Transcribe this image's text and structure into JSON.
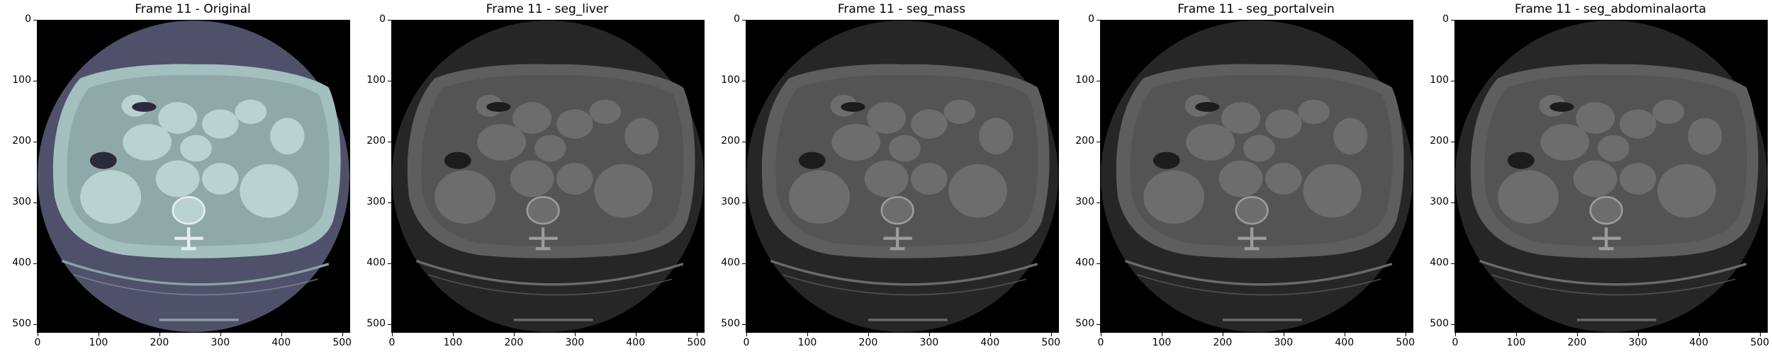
{
  "figure": {
    "panels": [
      {
        "title": "Frame 11 - Original",
        "colormap": "bone"
      },
      {
        "title": "Frame 11 - seg_liver",
        "colormap": "gray"
      },
      {
        "title": "Frame 11 - seg_mass",
        "colormap": "gray"
      },
      {
        "title": "Frame 11 - seg_portalvein",
        "colormap": "gray"
      },
      {
        "title": "Frame 11 - seg_abdominalaorta",
        "colormap": "gray"
      }
    ],
    "x_ticks": [
      "0",
      "100",
      "200",
      "300",
      "400",
      "500"
    ],
    "y_ticks": [
      "0",
      "100",
      "200",
      "300",
      "400",
      "500"
    ],
    "image_extent": [
      0,
      512
    ],
    "palettes": {
      "bone": {
        "bg": "#000000",
        "fov": "#4f5069",
        "body": "#a3bfbe",
        "fat": "#8fa9a8",
        "organ": "#b9d3d1",
        "dark": "#2a2a3a",
        "bone": "#e6efee",
        "table": "#8aa0a4"
      },
      "gray": {
        "bg": "#000000",
        "fov": "#262626",
        "body": "#5e5e5e",
        "fat": "#545454",
        "organ": "#6d6d6d",
        "dark": "#1c1c1c",
        "bone": "#9c9c9c",
        "table": "#6a6a6a"
      }
    }
  }
}
